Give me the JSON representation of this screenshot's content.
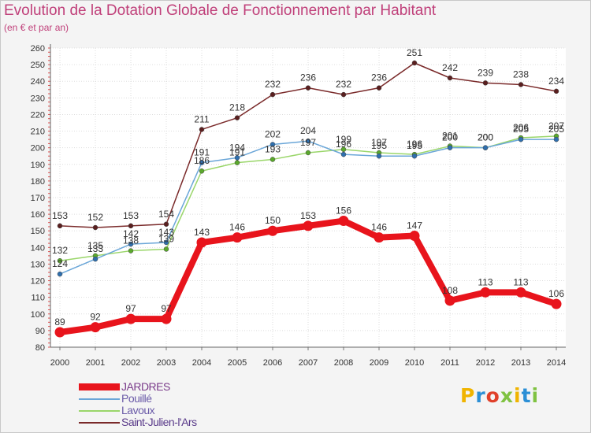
{
  "title": "Evolution de la Dotation Globale de Fonctionnement par Habitant",
  "subtitle": "(en € et par an)",
  "logo_text": "Proxiti",
  "logo_colors": [
    "#f0b400",
    "#2b8fd6",
    "#e0402a",
    "#7fc241",
    "#f0b400",
    "#2b8fd6",
    "#7fc241"
  ],
  "chart_data": {
    "type": "line",
    "title": "Evolution de la Dotation Globale de Fonctionnement par Habitant",
    "subtitle": "(en € et par an)",
    "xlabel": "",
    "ylabel": "",
    "ylim": [
      80,
      260
    ],
    "yticks": [
      80,
      90,
      100,
      110,
      120,
      130,
      140,
      150,
      160,
      170,
      180,
      190,
      200,
      210,
      220,
      230,
      240,
      250,
      260
    ],
    "x": [
      "2000",
      "2001",
      "2002",
      "2003",
      "2004",
      "2005",
      "2006",
      "2007",
      "2008",
      "2009",
      "2010",
      "2011",
      "2012",
      "2013",
      "2014"
    ],
    "grid": true,
    "series": [
      {
        "name": "Saint-Julien-l'Ars",
        "color": "#7a2a2a",
        "values": [
          153,
          152,
          153,
          154,
          211,
          218,
          232,
          236,
          232,
          236,
          251,
          242,
          239,
          238,
          234
        ]
      },
      {
        "name": "Lavoux",
        "color": "#9ad66a",
        "values": [
          132,
          135,
          138,
          139,
          186,
          191,
          193,
          197,
          199,
          197,
          196,
          201,
          200,
          206,
          207
        ]
      },
      {
        "name": "Pouillé",
        "color": "#6aa6d8",
        "values": [
          124,
          133,
          142,
          143,
          191,
          194,
          202,
          204,
          196,
          195,
          195,
          200,
          200,
          205,
          205
        ]
      },
      {
        "name": "JARDRES",
        "color": "#e8141c",
        "values": [
          89,
          92,
          97,
          97,
          143,
          146,
          150,
          153,
          156,
          146,
          147,
          108,
          113,
          113,
          106
        ]
      }
    ],
    "legend_order": [
      "JARDRES",
      "Pouillé",
      "Lavoux",
      "Saint-Julien-l'Ars"
    ]
  }
}
